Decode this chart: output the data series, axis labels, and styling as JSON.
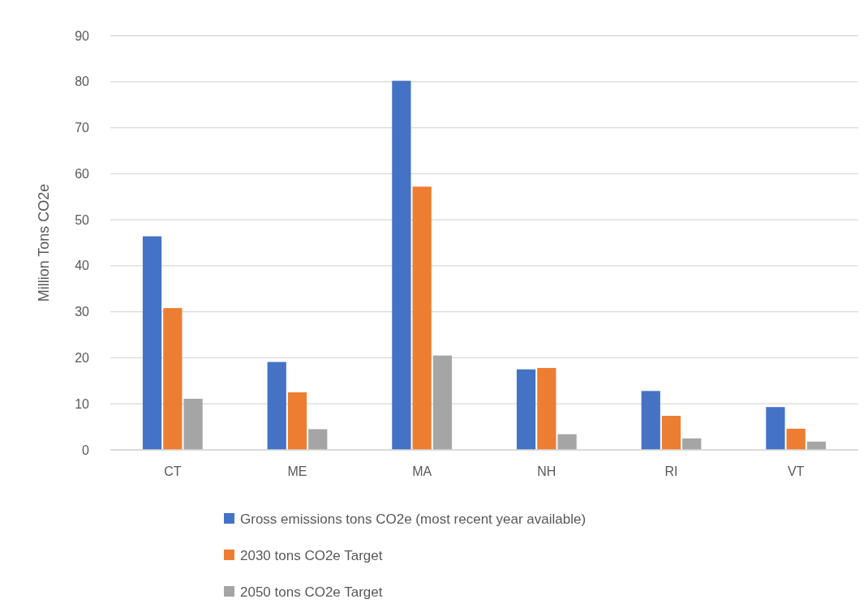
{
  "chart_data": {
    "type": "bar",
    "ylabel": "Million Tons CO2e",
    "categories": [
      "CT",
      "ME",
      "MA",
      "NH",
      "RI",
      "VT"
    ],
    "series": [
      {
        "name": "Gross emissions tons CO2e (most recent year available)",
        "color": "#4472c4",
        "values": [
          46.4,
          19.1,
          80.2,
          17.5,
          12.8,
          9.3
        ]
      },
      {
        "name": "2030 tons CO2e Target",
        "color": "#ed7d31",
        "values": [
          30.8,
          12.5,
          57.2,
          17.8,
          7.4,
          4.6
        ]
      },
      {
        "name": "2050 tons CO2e Target",
        "color": "#a5a5a5",
        "values": [
          11.1,
          4.5,
          20.5,
          3.4,
          2.5,
          1.8
        ]
      }
    ],
    "ylim": [
      0,
      90
    ],
    "yticks": [
      0,
      10,
      20,
      30,
      40,
      50,
      60,
      70,
      80,
      90
    ],
    "grid": "y",
    "legend": "bottom"
  }
}
